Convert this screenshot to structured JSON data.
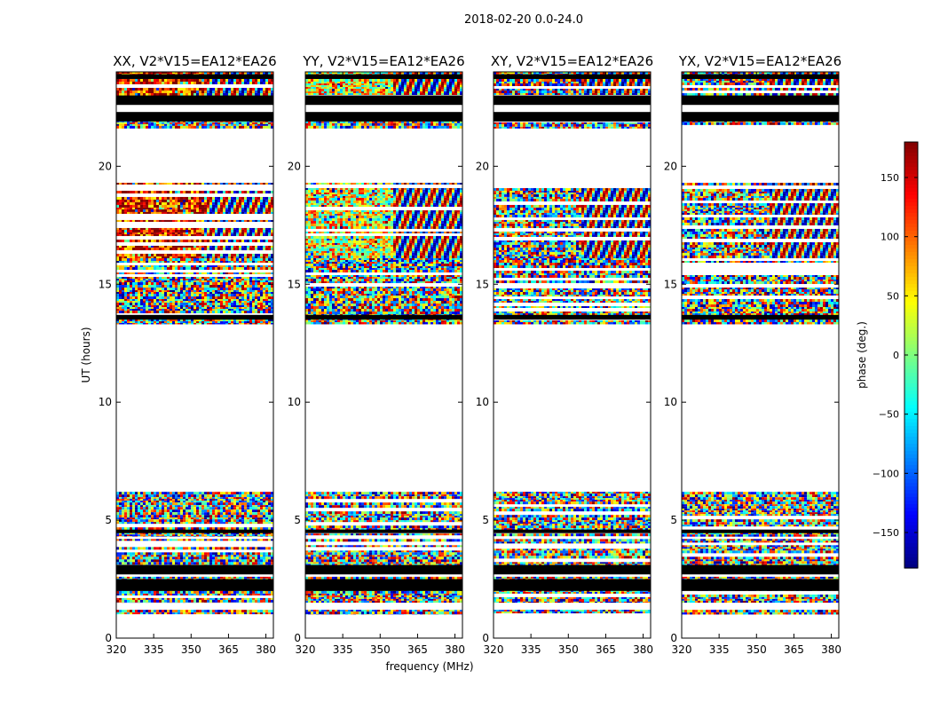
{
  "figure": {
    "suptitle": "2018-02-20 0.0-24.0"
  },
  "colors": {
    "colormap": [
      "#00007f",
      "#0000ff",
      "#007fff",
      "#00ffff",
      "#7fff7f",
      "#ffff00",
      "#ff7f00",
      "#ff0000",
      "#7f0000"
    ],
    "flagged": "#000000"
  },
  "chart_data": {
    "type": "heatmap",
    "colorbar": {
      "label": "phase (deg.)",
      "range": [
        -180,
        180
      ],
      "ticks": [
        150,
        100,
        50,
        0,
        -50,
        -100,
        -150
      ],
      "tick_labels": [
        "150",
        "100",
        "50",
        "0",
        "−50",
        "−100",
        "−150"
      ]
    },
    "xlabel": "frequency (MHz)",
    "ylabel": "UT (hours)",
    "xlim": [
      320,
      383
    ],
    "ylim": [
      0,
      24
    ],
    "xticks": [
      320,
      335,
      350,
      365,
      380
    ],
    "yticks": [
      0,
      5,
      10,
      15,
      20
    ],
    "panels": [
      {
        "title": "XX, V2*V15=EA12*EA26",
        "pol": "XX",
        "hue_bias": 140
      },
      {
        "title": "YY, V2*V15=EA12*EA26",
        "pol": "YY",
        "hue_bias": 40
      },
      {
        "title": "XY, V2*V15=EA12*EA26",
        "pol": "XY",
        "hue_bias": 0
      },
      {
        "title": "YX, V2*V15=EA12*EA26",
        "pol": "YX",
        "hue_bias": 0
      }
    ],
    "data_bands_ut": [
      {
        "from": 13.3,
        "to": 16.1,
        "style": "noise"
      },
      {
        "from": 16.1,
        "to": 19.3,
        "style": "fringe"
      },
      {
        "from": 21.6,
        "to": 22.2,
        "style": "noise"
      },
      {
        "from": 22.9,
        "to": 24.0,
        "style": "fringe"
      },
      {
        "from": 4.3,
        "to": 6.2,
        "style": "noise"
      },
      {
        "from": 3.0,
        "to": 4.2,
        "style": "noise"
      },
      {
        "from": 1.5,
        "to": 2.6,
        "style": "noise"
      },
      {
        "from": 1.0,
        "to": 1.2,
        "style": "noise"
      }
    ],
    "flagged_bands_ut": [
      {
        "from": 2.0,
        "to": 2.5
      },
      {
        "from": 2.7,
        "to": 3.1
      },
      {
        "from": 21.9,
        "to": 22.3
      },
      {
        "from": 22.6,
        "to": 23.0
      },
      {
        "from": 23.7,
        "to": 23.9
      },
      {
        "from": 13.5,
        "to": 13.7
      },
      {
        "from": 4.45,
        "to": 4.6
      }
    ]
  }
}
